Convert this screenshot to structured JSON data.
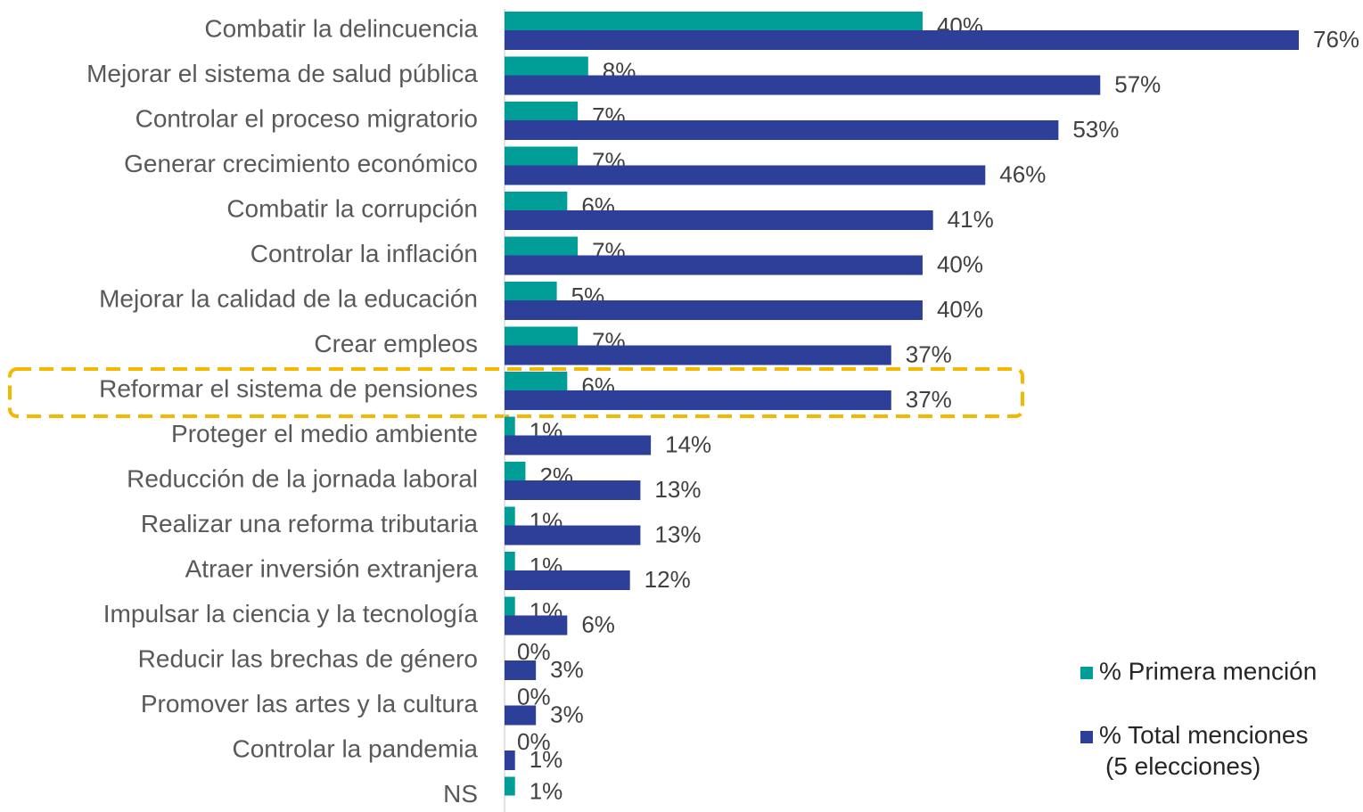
{
  "chart_data": {
    "type": "bar",
    "orientation": "horizontal",
    "categories": [
      "Combatir la delincuencia",
      "Mejorar el sistema de salud pública",
      "Controlar el proceso migratorio",
      "Generar crecimiento económico",
      "Combatir la corrupción",
      "Controlar la inflación",
      "Mejorar la calidad de la educación",
      "Crear empleos",
      "Reformar el sistema de pensiones",
      "Proteger el medio ambiente",
      "Reducción de la jornada laboral",
      "Realizar una reforma tributaria",
      "Atraer inversión extranjera",
      "Impulsar la ciencia y la tecnología",
      "Reducir las brechas de género",
      "Promover las artes y la cultura",
      "Controlar la pandemia",
      "NS"
    ],
    "series": [
      {
        "name": "% Primera mención",
        "color": "#009e96",
        "values": [
          40,
          8,
          7,
          7,
          6,
          7,
          5,
          7,
          6,
          1,
          2,
          1,
          1,
          1,
          0,
          0,
          0,
          1
        ],
        "value_labels": [
          "40%",
          "8%",
          "7%",
          "7%",
          "6%",
          "7%",
          "5%",
          "7%",
          "6%",
          "1%",
          "2%",
          "1%",
          "1%",
          "1%",
          "0%",
          "0%",
          "0%",
          "1%"
        ]
      },
      {
        "name": "% Total menciones (5 elecciones)",
        "color": "#2e3f9a",
        "values": [
          76,
          57,
          53,
          46,
          41,
          40,
          40,
          37,
          37,
          14,
          13,
          13,
          12,
          6,
          3,
          3,
          1,
          null
        ],
        "value_labels": [
          "76%",
          "57%",
          "53%",
          "46%",
          "41%",
          "40%",
          "40%",
          "37%",
          "37%",
          "14%",
          "13%",
          "13%",
          "12%",
          "6%",
          "3%",
          "3%",
          "1%",
          null
        ]
      }
    ],
    "legend": "right"
  }
}
